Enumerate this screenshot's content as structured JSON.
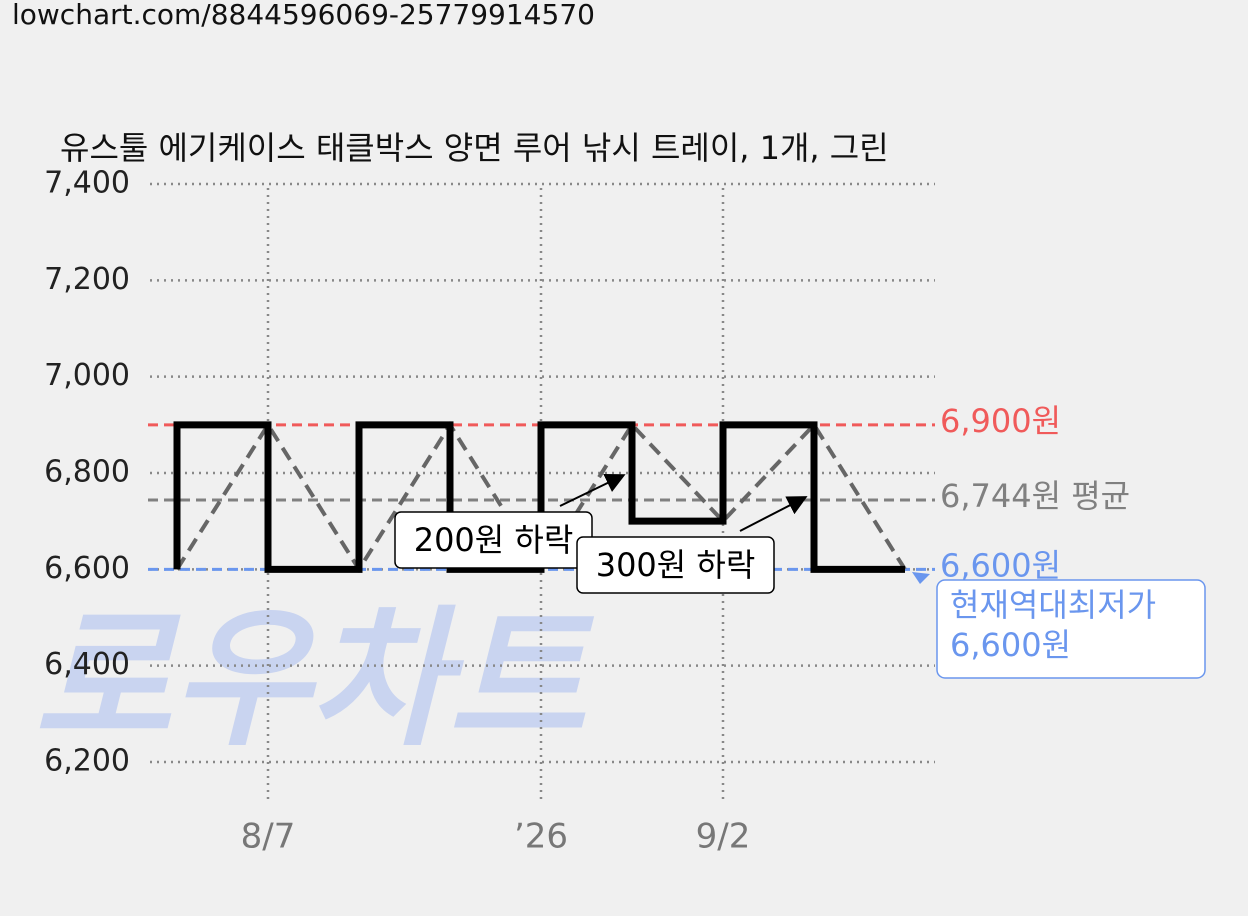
{
  "header": {
    "url": "lowchart.com/8844596069-25779914570"
  },
  "chart_data": {
    "type": "line",
    "title": "유스툴 에기케이스 태클박스 양면 루어 낚시 트레이, 1개, 그린",
    "categories": [
      null,
      "8/7",
      null,
      null,
      "’26",
      null,
      "9/2",
      null,
      null
    ],
    "values": [
      6600,
      6900,
      6600,
      6900,
      6600,
      6900,
      6700,
      6900,
      6600
    ],
    "step_color": "#000000",
    "line_color": "#666666",
    "ylim": [
      6200,
      7400
    ],
    "yticks": [
      {
        "value": 6200,
        "label": "6,200"
      },
      {
        "value": 6400,
        "label": "6,400"
      },
      {
        "value": 6600,
        "label": "6,600"
      },
      {
        "value": 6800,
        "label": "6,800"
      },
      {
        "value": 7000,
        "label": "7,000"
      },
      {
        "value": 7200,
        "label": "7,200"
      },
      {
        "value": 7400,
        "label": "7,400"
      }
    ],
    "grid": true,
    "reference_lines": [
      {
        "value": 6900,
        "label": "6,900원",
        "color": "#f05a5a"
      },
      {
        "value": 6744,
        "label": "6,744원 평균",
        "color": "#808080"
      },
      {
        "value": 6600,
        "label": "6,600원",
        "color": "#6a96ee"
      }
    ],
    "annotations": [
      "200원 하락",
      "300원 하락"
    ],
    "callout": [
      "현재역대최저가",
      "6,600원"
    ],
    "watermark": "로우차트"
  }
}
